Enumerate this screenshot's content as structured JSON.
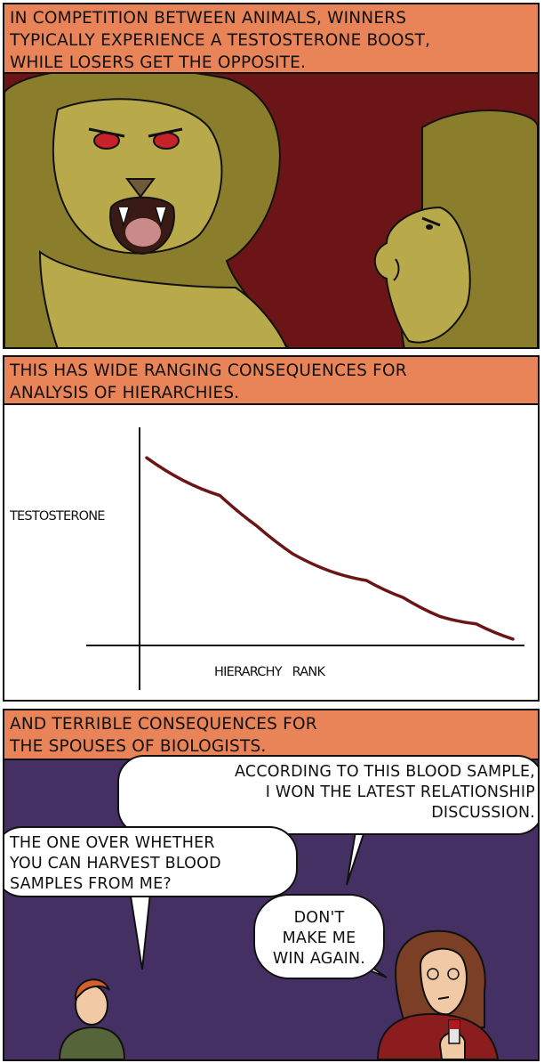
{
  "panel1": {
    "caption": "In competition between animals, winners\ntypically experience a testosterone boost,\nwhile losers get the opposite."
  },
  "panel2": {
    "caption": "This has wide ranging consequences for\nanalysis of hierarchies."
  },
  "panel3": {
    "caption": "And terrible consequences for\nthe spouses of biologists.",
    "bubble_woman_1": "According to this blood sample,\nI won the latest relationship\ndiscussion.",
    "bubble_man": "The one over whether\nyou can harvest blood\nsamples from me?",
    "bubble_woman_2": "Don't\nmake me\nwin again."
  },
  "colors": {
    "caption_bg": "#e98358",
    "panel1_bg": "#6b1516",
    "lion_fur": "#b8a94a",
    "panel3_bg": "#453063",
    "chart_line": "#6b1516"
  },
  "chart_data": {
    "type": "line",
    "title": "",
    "xlabel": "Hierarchy Rank",
    "ylabel": "Testosterone",
    "x": [
      0,
      0.1,
      0.2,
      0.3,
      0.4,
      0.5,
      0.6,
      0.7,
      0.8,
      0.9,
      1.0
    ],
    "y": [
      0.98,
      0.86,
      0.78,
      0.62,
      0.47,
      0.38,
      0.33,
      0.24,
      0.14,
      0.1,
      0.02
    ],
    "xlim": [
      0,
      1
    ],
    "ylim": [
      0,
      1
    ],
    "grid": false,
    "series": [
      {
        "values": [
          0.98,
          0.86,
          0.78,
          0.62,
          0.47,
          0.38,
          0.33,
          0.24,
          0.14,
          0.1,
          0.02
        ]
      }
    ]
  }
}
